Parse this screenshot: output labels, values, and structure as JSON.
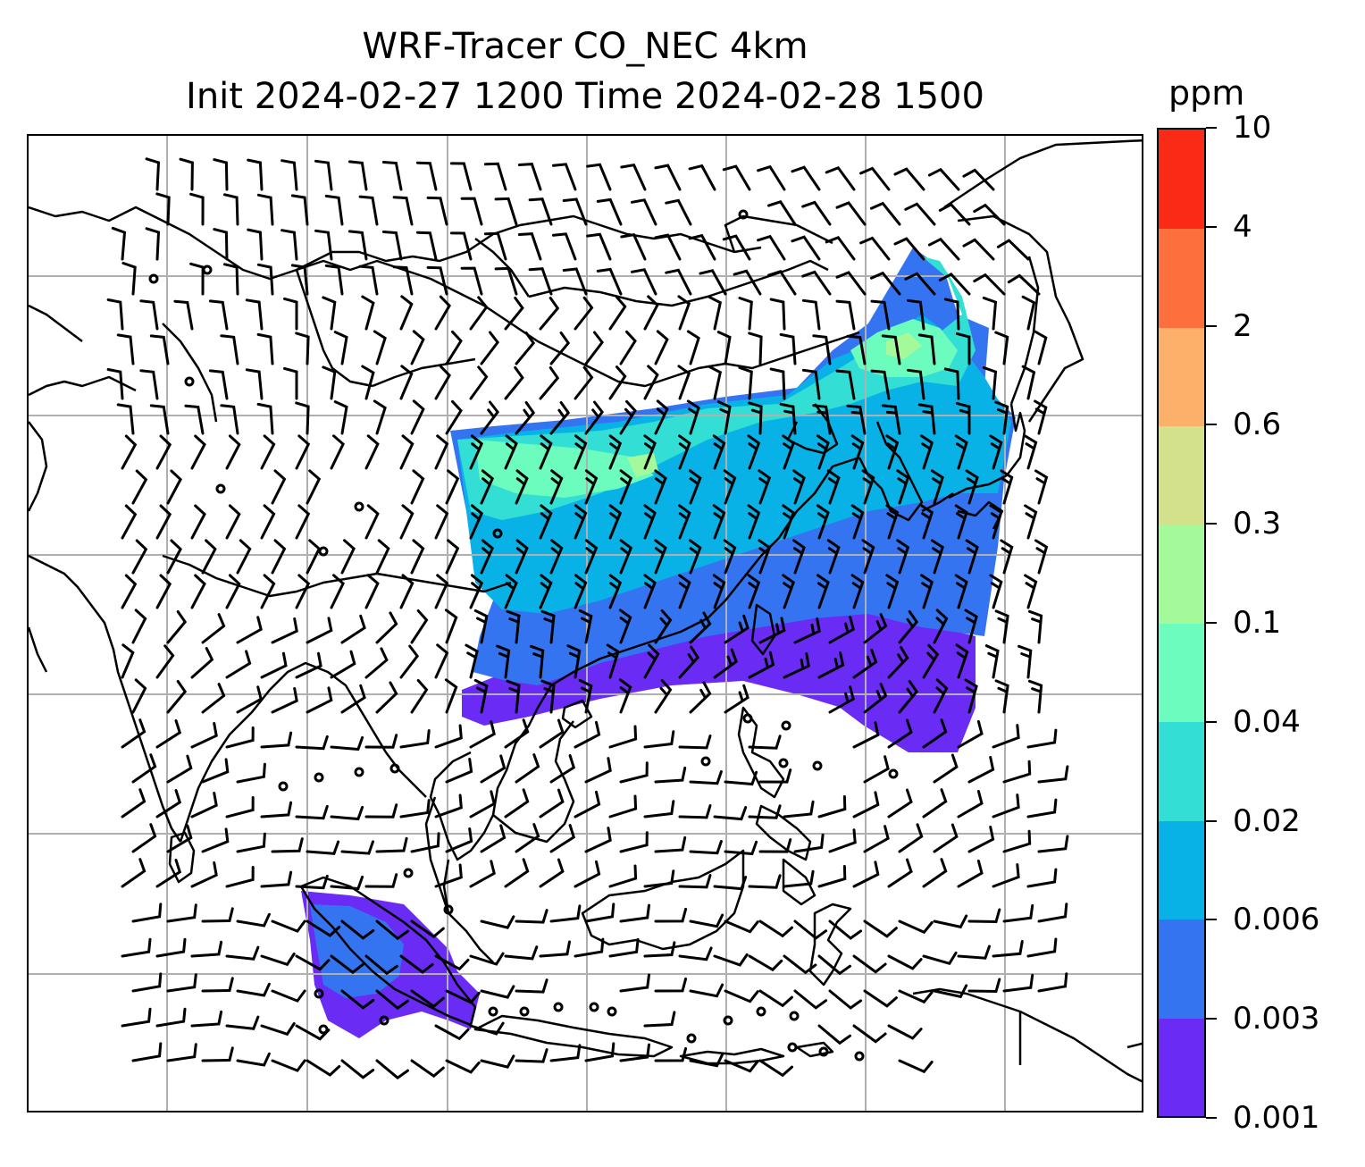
{
  "title": {
    "line1": "WRF-Tracer CO_NEC 4km",
    "line2": "Init 2024-02-27 1200 Time 2024-02-28 1500"
  },
  "colorbar": {
    "unit": "ppm",
    "levels": [
      "0.001",
      "0.003",
      "0.006",
      "0.02",
      "0.04",
      "0.1",
      "0.3",
      "0.6",
      "2",
      "4",
      "10"
    ],
    "colors": [
      "#6a2bf5",
      "#3574f0",
      "#08b2e6",
      "#33dfd4",
      "#6cfcbe",
      "#a4f99a",
      "#d3e28a",
      "#fdb06a",
      "#fd6f3d",
      "#fb2a16"
    ]
  },
  "map": {
    "gridline_color": "#b0b0b0",
    "coastline_color": "#000000",
    "wind_barb_color": "#000000"
  }
}
